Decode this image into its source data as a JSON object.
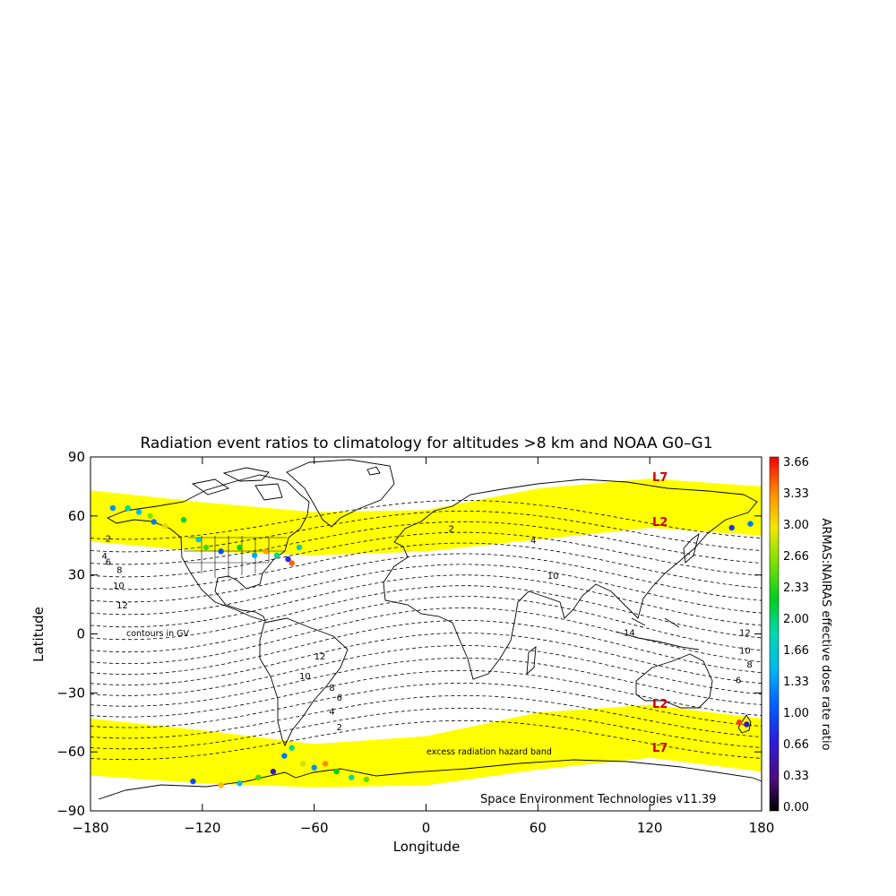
{
  "chart_data": {
    "type": "map",
    "title": "Radiation event ratios to climatology for altitudes >8 km and NOAA G0–G1",
    "xlabel": "Longitude",
    "ylabel": "Latitude",
    "xlim": [
      -180,
      180
    ],
    "ylim": [
      -90,
      90
    ],
    "x_ticks": [
      "−180",
      "−120",
      "−60",
      "0",
      "60",
      "120",
      "180"
    ],
    "y_ticks": [
      "90",
      "60",
      "30",
      "0",
      "−30",
      "−60",
      "−90"
    ],
    "colorbar": {
      "label": "ARMAS:NAIRAS effective dose rate ratio",
      "ticks": [
        "3.66",
        "3.33",
        "3.00",
        "2.66",
        "2.33",
        "2.00",
        "1.66",
        "1.33",
        "1.00",
        "0.66",
        "0.33",
        "0.00"
      ],
      "range": [
        0,
        3.66
      ]
    },
    "annotations": {
      "contours_note": "contours in GV",
      "band_label": "excess radiation hazard band",
      "credit": "Space Environment Technologies v11.39",
      "l7_north": "L7",
      "l2_north": "L2",
      "l2_south": "L2",
      "l7_south": "L7"
    },
    "contour_labels": [
      {
        "text": "2",
        "lon": -172,
        "lat": 47
      },
      {
        "text": "4",
        "lon": -174,
        "lat": 38
      },
      {
        "text": "6",
        "lon": -172,
        "lat": 35
      },
      {
        "text": "8",
        "lon": -166,
        "lat": 31
      },
      {
        "text": "10",
        "lon": -168,
        "lat": 23
      },
      {
        "text": "12",
        "lon": -166,
        "lat": 13
      },
      {
        "text": "2",
        "lon": 12,
        "lat": 52
      },
      {
        "text": "4",
        "lon": 56,
        "lat": 46
      },
      {
        "text": "10",
        "lon": 65,
        "lat": 28
      },
      {
        "text": "14",
        "lon": 106,
        "lat": -1
      },
      {
        "text": "12",
        "lon": -60,
        "lat": -13
      },
      {
        "text": "10",
        "lon": -68,
        "lat": -23
      },
      {
        "text": "8",
        "lon": -52,
        "lat": -29
      },
      {
        "text": "6",
        "lon": -48,
        "lat": -34
      },
      {
        "text": "4",
        "lon": -52,
        "lat": -41
      },
      {
        "text": "2",
        "lon": -48,
        "lat": -49
      },
      {
        "text": "12",
        "lon": 168,
        "lat": -1
      },
      {
        "text": "10",
        "lon": 168,
        "lat": -10
      },
      {
        "text": "8",
        "lon": 172,
        "lat": -17
      },
      {
        "text": "6",
        "lon": 166,
        "lat": -25
      }
    ],
    "hazard_band_north": {
      "lower_lat_at_lon": [
        [
          -180,
          47
        ],
        [
          -120,
          42
        ],
        [
          -60,
          40
        ],
        [
          0,
          42
        ],
        [
          60,
          48
        ],
        [
          120,
          54
        ],
        [
          180,
          50
        ]
      ],
      "upper_lat_at_lon": [
        [
          -180,
          73
        ],
        [
          -120,
          67
        ],
        [
          -60,
          62
        ],
        [
          0,
          63
        ],
        [
          60,
          74
        ],
        [
          120,
          79
        ],
        [
          180,
          75
        ]
      ]
    },
    "hazard_band_south": {
      "upper_lat_at_lon": [
        [
          -180,
          -43
        ],
        [
          -120,
          -49
        ],
        [
          -60,
          -56
        ],
        [
          0,
          -52
        ],
        [
          60,
          -40
        ],
        [
          120,
          -36
        ],
        [
          180,
          -43
        ]
      ],
      "lower_lat_at_lon": [
        [
          -180,
          -72
        ],
        [
          -120,
          -76
        ],
        [
          -60,
          -78
        ],
        [
          0,
          -77
        ],
        [
          60,
          -69
        ],
        [
          120,
          -63
        ],
        [
          180,
          -70
        ]
      ]
    },
    "measurements": [
      {
        "lon": -168,
        "lat": 64,
        "ratio": 1.3
      },
      {
        "lon": -160,
        "lat": 64,
        "ratio": 1.8
      },
      {
        "lon": -154,
        "lat": 62,
        "ratio": 1.5
      },
      {
        "lon": -148,
        "lat": 60,
        "ratio": 2.6
      },
      {
        "lon": -146,
        "lat": 57,
        "ratio": 1.2
      },
      {
        "lon": -140,
        "lat": 55,
        "ratio": 3.0
      },
      {
        "lon": -130,
        "lat": 58,
        "ratio": 2.1
      },
      {
        "lon": -122,
        "lat": 48,
        "ratio": 1.6
      },
      {
        "lon": -118,
        "lat": 44,
        "ratio": 2.4
      },
      {
        "lon": -110,
        "lat": 42,
        "ratio": 1.0
      },
      {
        "lon": -100,
        "lat": 44,
        "ratio": 2.2
      },
      {
        "lon": -92,
        "lat": 40,
        "ratio": 1.4
      },
      {
        "lon": -86,
        "lat": 42,
        "ratio": 3.2
      },
      {
        "lon": -80,
        "lat": 40,
        "ratio": 1.9
      },
      {
        "lon": -74,
        "lat": 38,
        "ratio": 0.8
      },
      {
        "lon": -72,
        "lat": 36,
        "ratio": 3.4
      },
      {
        "lon": -68,
        "lat": 44,
        "ratio": 1.7
      },
      {
        "lon": 164,
        "lat": 54,
        "ratio": 0.9
      },
      {
        "lon": 174,
        "lat": 56,
        "ratio": 1.2
      },
      {
        "lon": 168,
        "lat": -45,
        "ratio": 3.5
      },
      {
        "lon": 172,
        "lat": -46,
        "ratio": 0.6
      },
      {
        "lon": -125,
        "lat": -75,
        "ratio": 1.0
      },
      {
        "lon": -110,
        "lat": -77,
        "ratio": 3.1
      },
      {
        "lon": -100,
        "lat": -76,
        "ratio": 1.5
      },
      {
        "lon": -90,
        "lat": -73,
        "ratio": 2.4
      },
      {
        "lon": -82,
        "lat": -70,
        "ratio": 0.7
      },
      {
        "lon": -76,
        "lat": -62,
        "ratio": 1.2
      },
      {
        "lon": -72,
        "lat": -58,
        "ratio": 1.9
      },
      {
        "lon": -66,
        "lat": -66,
        "ratio": 2.8
      },
      {
        "lon": -60,
        "lat": -68,
        "ratio": 1.3
      },
      {
        "lon": -54,
        "lat": -66,
        "ratio": 3.3
      },
      {
        "lon": -48,
        "lat": -70,
        "ratio": 2.2
      },
      {
        "lon": -40,
        "lat": -73,
        "ratio": 1.8
      },
      {
        "lon": -32,
        "lat": -74,
        "ratio": 2.5
      }
    ]
  }
}
